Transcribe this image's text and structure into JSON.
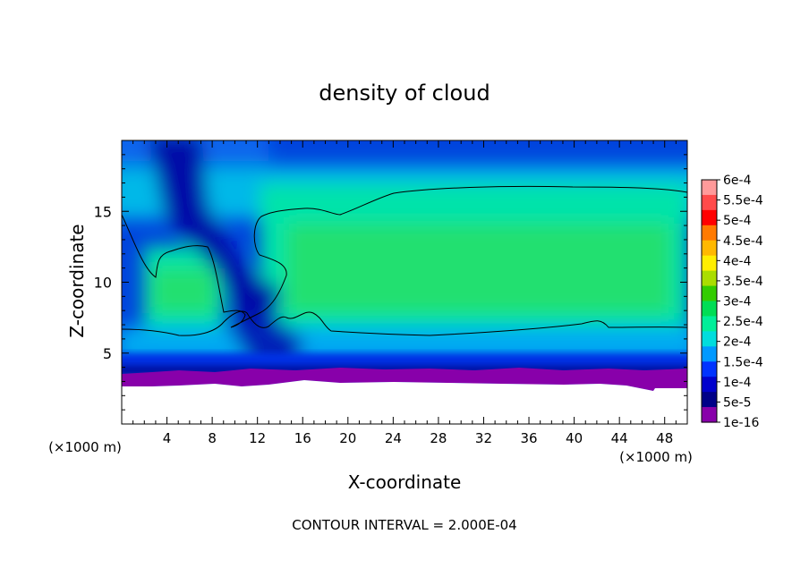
{
  "chart_data": {
    "type": "heatmap",
    "title": "density of cloud",
    "xlabel": "X-coordinate",
    "ylabel": "Z-coordinate",
    "x_unit": "(×1000 m)",
    "y_unit": "(×1000 m)",
    "xlim": [
      0,
      50
    ],
    "ylim": [
      0,
      20
    ],
    "x_ticks": [
      "4",
      "8",
      "12",
      "16",
      "20",
      "24",
      "28",
      "32",
      "36",
      "40",
      "44",
      "48"
    ],
    "y_ticks": [
      "5",
      "10",
      "15"
    ],
    "footer": "CONTOUR INTERVAL = 2.000E-04",
    "contour_interval": 0.0002,
    "colorbar": {
      "labels": [
        "6e-4",
        "5.5e-4",
        "5e-4",
        "4.5e-4",
        "4e-4",
        "3.5e-4",
        "3e-4",
        "2.5e-4",
        "2e-4",
        "1.5e-4",
        "1e-4",
        "5e-5",
        "1e-16"
      ],
      "values": [
        0.0006,
        0.00055,
        0.0005,
        0.00045,
        0.0004,
        0.00035,
        0.0003,
        0.00025,
        0.0002,
        0.00015,
        0.0001,
        5e-05,
        1e-16
      ],
      "colors": [
        "#ff9a9a",
        "#ff4a4a",
        "#ff0000",
        "#ff7a00",
        "#ffb800",
        "#ffee00",
        "#aadd00",
        "#33cc00",
        "#00dd55",
        "#00ee99",
        "#00dddd",
        "#0099ff",
        "#0033ff",
        "#0000cc",
        "#000088",
        "#8800aa"
      ]
    }
  }
}
